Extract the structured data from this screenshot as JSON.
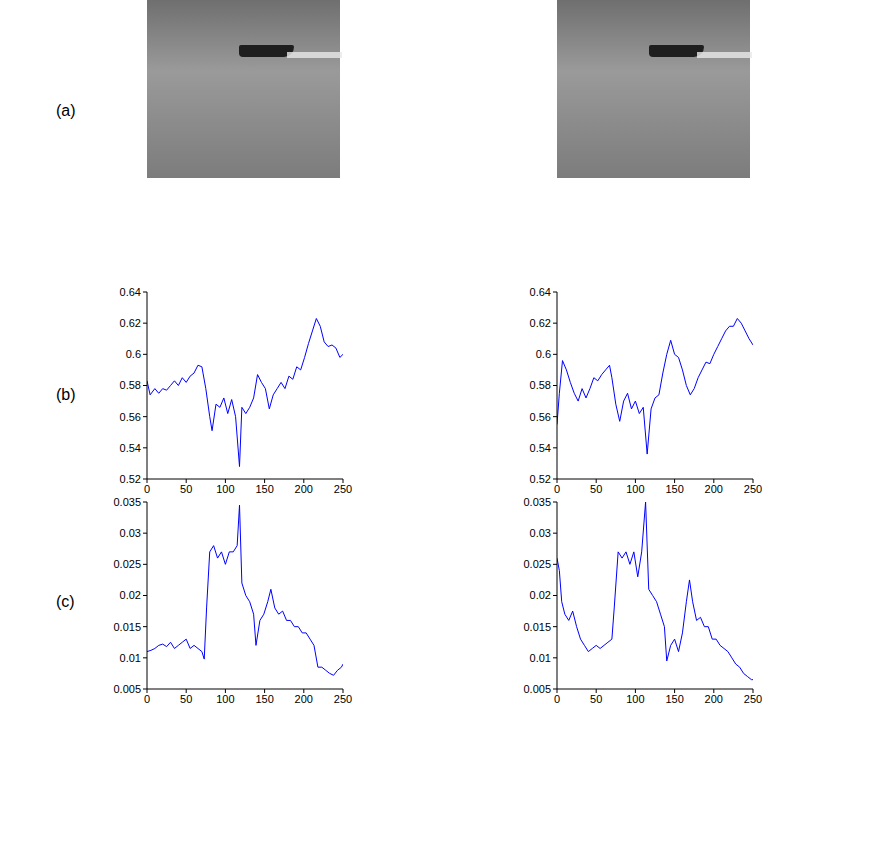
{
  "panel_labels": [
    "(a)",
    "(b)",
    "(c)"
  ],
  "chart_data": [
    {
      "type": "line",
      "color": "#0000ff",
      "xlim": [
        0,
        250
      ],
      "xticks": [
        0,
        50,
        100,
        150,
        200,
        250
      ],
      "ylim": [
        0.52,
        0.64
      ],
      "yticks": [
        0.52,
        0.54,
        0.56,
        0.58,
        0.6,
        0.62,
        0.64
      ],
      "x": [
        0,
        4,
        10,
        15,
        20,
        25,
        30,
        35,
        40,
        45,
        50,
        55,
        60,
        65,
        70,
        75,
        80,
        83,
        88,
        93,
        98,
        103,
        108,
        113,
        118,
        121,
        126,
        131,
        136,
        141,
        146,
        151,
        156,
        161,
        166,
        171,
        176,
        181,
        186,
        191,
        196,
        201,
        206,
        211,
        216,
        221,
        226,
        231,
        236,
        241,
        246,
        250
      ],
      "values": [
        0.583,
        0.574,
        0.578,
        0.575,
        0.578,
        0.577,
        0.58,
        0.583,
        0.58,
        0.585,
        0.582,
        0.586,
        0.588,
        0.593,
        0.592,
        0.578,
        0.56,
        0.551,
        0.568,
        0.566,
        0.572,
        0.562,
        0.571,
        0.56,
        0.528,
        0.566,
        0.562,
        0.566,
        0.572,
        0.587,
        0.582,
        0.578,
        0.565,
        0.574,
        0.578,
        0.582,
        0.578,
        0.586,
        0.584,
        0.592,
        0.59,
        0.598,
        0.607,
        0.615,
        0.623,
        0.618,
        0.608,
        0.605,
        0.606,
        0.604,
        0.598,
        0.6
      ]
    },
    {
      "type": "line",
      "color": "#0000ff",
      "xlim": [
        0,
        250
      ],
      "xticks": [
        0,
        50,
        100,
        150,
        200,
        250
      ],
      "ylim": [
        0.52,
        0.64
      ],
      "yticks": [
        0.52,
        0.54,
        0.56,
        0.58,
        0.6,
        0.62,
        0.64
      ],
      "x": [
        0,
        3,
        7,
        12,
        17,
        22,
        27,
        32,
        37,
        42,
        47,
        52,
        57,
        62,
        67,
        70,
        75,
        80,
        85,
        90,
        95,
        100,
        105,
        110,
        115,
        120,
        125,
        130,
        135,
        140,
        145,
        150,
        155,
        160,
        165,
        170,
        175,
        180,
        185,
        190,
        195,
        200,
        205,
        210,
        215,
        220,
        225,
        230,
        235,
        240,
        245,
        250
      ],
      "values": [
        0.555,
        0.575,
        0.596,
        0.59,
        0.582,
        0.575,
        0.57,
        0.578,
        0.572,
        0.578,
        0.585,
        0.583,
        0.587,
        0.59,
        0.593,
        0.585,
        0.568,
        0.557,
        0.57,
        0.575,
        0.565,
        0.57,
        0.562,
        0.566,
        0.536,
        0.565,
        0.572,
        0.574,
        0.588,
        0.6,
        0.609,
        0.6,
        0.598,
        0.59,
        0.58,
        0.574,
        0.578,
        0.585,
        0.59,
        0.595,
        0.594,
        0.6,
        0.605,
        0.61,
        0.615,
        0.618,
        0.618,
        0.623,
        0.62,
        0.615,
        0.61,
        0.606
      ]
    },
    {
      "type": "line",
      "color": "#0000ff",
      "xlim": [
        0,
        250
      ],
      "xticks": [
        0,
        50,
        100,
        150,
        200,
        250
      ],
      "ylim": [
        0.005,
        0.035
      ],
      "yticks": [
        0.005,
        0.01,
        0.015,
        0.02,
        0.025,
        0.03,
        0.035
      ],
      "x": [
        0,
        5,
        10,
        15,
        20,
        25,
        30,
        35,
        40,
        45,
        50,
        55,
        60,
        65,
        70,
        73,
        76,
        80,
        85,
        90,
        95,
        100,
        105,
        110,
        115,
        118,
        121,
        126,
        131,
        136,
        139,
        144,
        149,
        154,
        158,
        163,
        168,
        173,
        178,
        183,
        188,
        193,
        198,
        203,
        208,
        213,
        218,
        223,
        228,
        233,
        238,
        243,
        248,
        250
      ],
      "values": [
        0.011,
        0.0112,
        0.0115,
        0.012,
        0.0122,
        0.0118,
        0.0125,
        0.0115,
        0.012,
        0.0125,
        0.013,
        0.0115,
        0.012,
        0.0115,
        0.011,
        0.0098,
        0.018,
        0.027,
        0.028,
        0.026,
        0.027,
        0.025,
        0.027,
        0.027,
        0.028,
        0.0345,
        0.022,
        0.02,
        0.019,
        0.017,
        0.012,
        0.016,
        0.017,
        0.019,
        0.021,
        0.018,
        0.017,
        0.0175,
        0.016,
        0.016,
        0.015,
        0.015,
        0.014,
        0.014,
        0.013,
        0.012,
        0.0085,
        0.0085,
        0.008,
        0.0075,
        0.0072,
        0.008,
        0.0085,
        0.009
      ]
    },
    {
      "type": "line",
      "color": "#0000ff",
      "xlim": [
        0,
        250
      ],
      "xticks": [
        0,
        50,
        100,
        150,
        200,
        250
      ],
      "ylim": [
        0.005,
        0.035
      ],
      "yticks": [
        0.005,
        0.01,
        0.015,
        0.02,
        0.025,
        0.03,
        0.035
      ],
      "x": [
        0,
        3,
        6,
        10,
        15,
        20,
        25,
        30,
        35,
        40,
        45,
        50,
        55,
        60,
        65,
        70,
        73,
        78,
        83,
        88,
        93,
        98,
        103,
        108,
        113,
        117,
        122,
        127,
        132,
        137,
        140,
        145,
        150,
        155,
        160,
        165,
        169,
        173,
        178,
        183,
        188,
        193,
        198,
        203,
        208,
        213,
        218,
        223,
        228,
        233,
        238,
        243,
        248,
        250
      ],
      "values": [
        0.026,
        0.024,
        0.019,
        0.017,
        0.016,
        0.0175,
        0.015,
        0.013,
        0.012,
        0.011,
        0.0115,
        0.012,
        0.0115,
        0.012,
        0.0125,
        0.013,
        0.018,
        0.027,
        0.026,
        0.027,
        0.025,
        0.027,
        0.023,
        0.027,
        0.035,
        0.021,
        0.02,
        0.019,
        0.017,
        0.015,
        0.0095,
        0.012,
        0.013,
        0.011,
        0.014,
        0.019,
        0.0225,
        0.019,
        0.016,
        0.0165,
        0.015,
        0.015,
        0.013,
        0.013,
        0.012,
        0.0115,
        0.011,
        0.01,
        0.009,
        0.0085,
        0.0075,
        0.007,
        0.0065,
        0.0065
      ]
    }
  ]
}
